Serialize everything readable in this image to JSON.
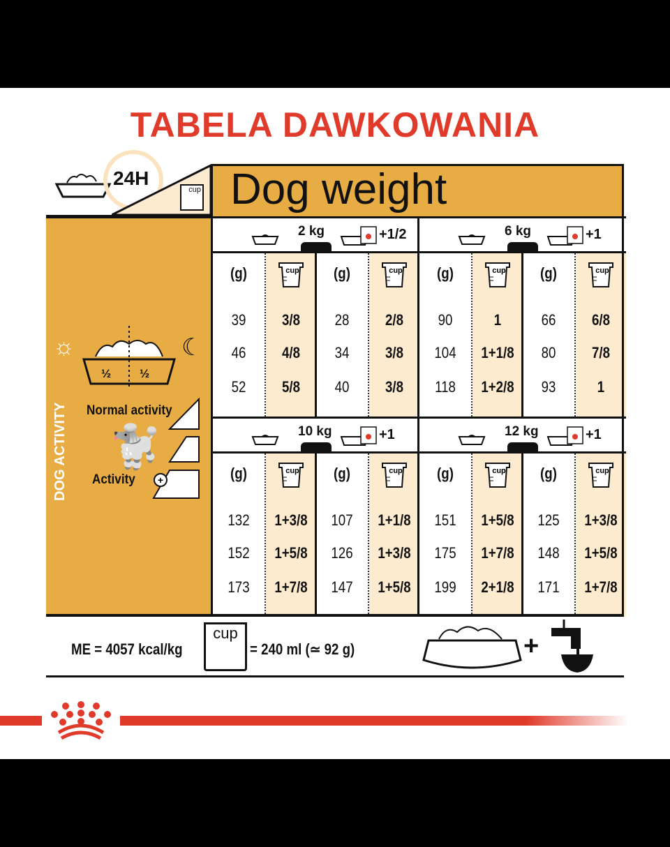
{
  "title": "TABELA DAWKOWANIA",
  "header": {
    "period": "24H",
    "cup_label": "cup",
    "dog_weight": "Dog weight"
  },
  "left_panel": {
    "vertical_label": "DOG ACTIVITY",
    "half_left": "½",
    "half_right": "½",
    "normal_activity": "Normal activity",
    "activity": "Activity"
  },
  "column_headers": {
    "grams": "(g)",
    "cup": "cup"
  },
  "quadrants": [
    {
      "weight": "2 kg",
      "extra": "+1/2",
      "rows": [
        [
          "39",
          "3/8",
          "28",
          "2/8"
        ],
        [
          "46",
          "4/8",
          "34",
          "3/8"
        ],
        [
          "52",
          "5/8",
          "40",
          "3/8"
        ]
      ]
    },
    {
      "weight": "6 kg",
      "extra": "+1",
      "rows": [
        [
          "90",
          "1",
          "66",
          "6/8"
        ],
        [
          "104",
          "1+1/8",
          "80",
          "7/8"
        ],
        [
          "118",
          "1+2/8",
          "93",
          "1"
        ]
      ]
    },
    {
      "weight": "10 kg",
      "extra": "+1",
      "rows": [
        [
          "132",
          "1+3/8",
          "107",
          "1+1/8"
        ],
        [
          "152",
          "1+5/8",
          "126",
          "1+3/8"
        ],
        [
          "173",
          "1+7/8",
          "147",
          "1+5/8"
        ]
      ]
    },
    {
      "weight": "12 kg",
      "extra": "+1",
      "rows": [
        [
          "151",
          "1+5/8",
          "125",
          "1+3/8"
        ],
        [
          "175",
          "1+7/8",
          "148",
          "1+5/8"
        ],
        [
          "199",
          "2+1/8",
          "171",
          "1+7/8"
        ]
      ]
    }
  ],
  "footer": {
    "energy": "ME = 4057 kcal/kg",
    "cup_label": "cup",
    "cup_equivalent": "= 240 ml (≃ 92 g)"
  },
  "colors": {
    "brand_red": "#e03a2a",
    "orange": "#e8ac45",
    "cream": "#fdebd0"
  }
}
